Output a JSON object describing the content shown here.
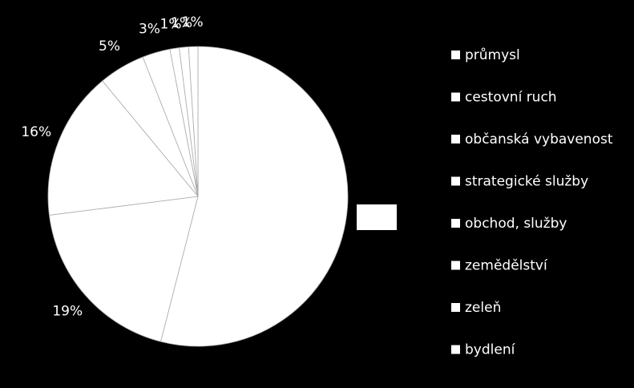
{
  "chart_data": {
    "type": "pie",
    "categories": [
      "průmysl",
      "cestovní ruch",
      "občanská vybavenost",
      "strategické služby",
      "obchod, služby",
      "zemědělství",
      "zeleň",
      "bydlení"
    ],
    "values": [
      54,
      19,
      16,
      5,
      3,
      1,
      1,
      1
    ],
    "value_labels": [
      null,
      "19%",
      "16%",
      "5%",
      "3%",
      "1%",
      "1%",
      "1%"
    ],
    "color": "#ffffff",
    "legend": "right"
  }
}
